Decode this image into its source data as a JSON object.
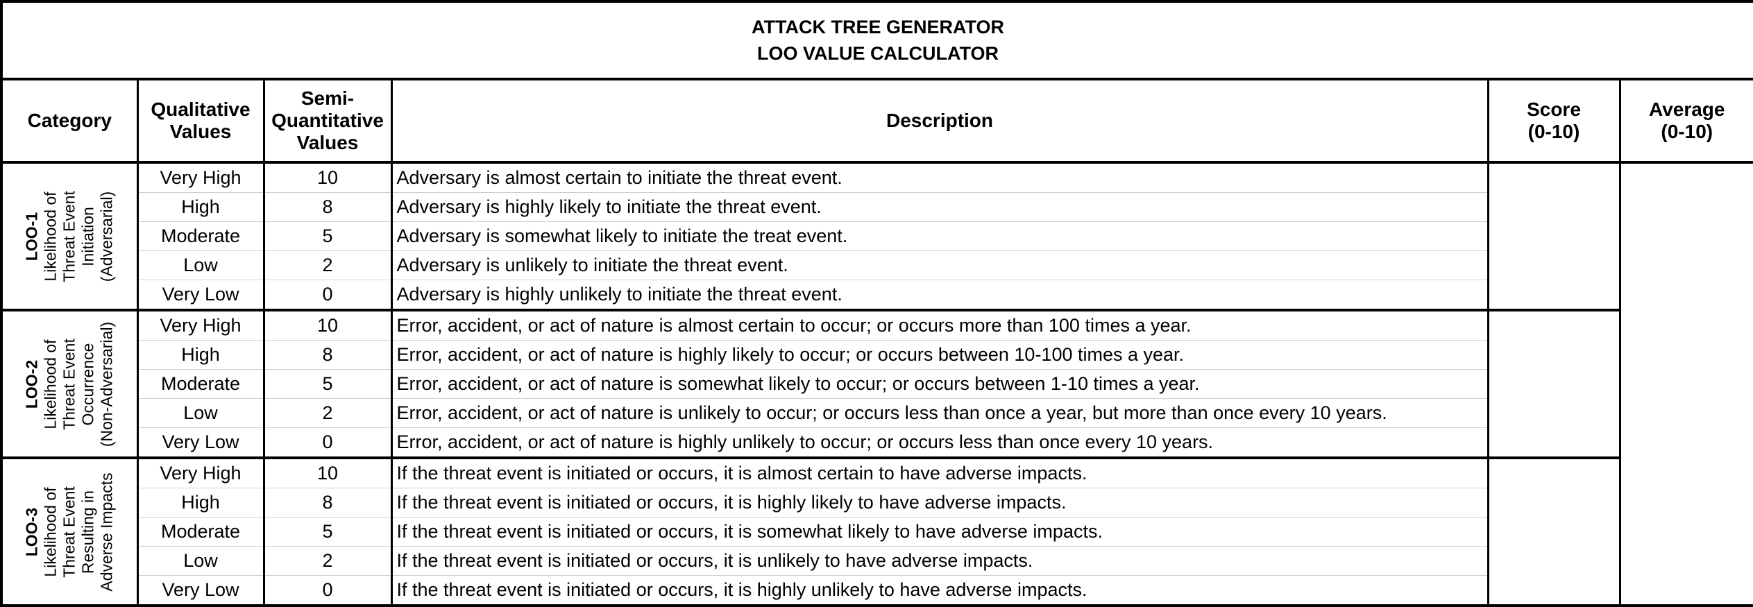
{
  "title": {
    "line1": "ATTACK TREE GENERATOR",
    "line2": "LOO VALUE CALCULATOR"
  },
  "headers": {
    "category": "Category",
    "qualitative_line1": "Qualitative",
    "qualitative_line2": "Values",
    "semi_line1": "Semi-",
    "semi_line2": "Quantitative",
    "semi_line3": "Values",
    "description": "Description",
    "score_line1": "Score",
    "score_line2": "(0-10)",
    "average_line1": "Average",
    "average_line2": "(0-10)"
  },
  "groups": [
    {
      "code": "LOO-1",
      "label_lines": [
        "Likelihood of",
        "Threat Event",
        "Initiation",
        "(Adversarial)"
      ],
      "score": "",
      "rows": [
        {
          "qual": "Very High",
          "semi": "10",
          "desc": "Adversary is almost certain to initiate the threat event."
        },
        {
          "qual": "High",
          "semi": "8",
          "desc": "Adversary is highly likely to initiate the threat event."
        },
        {
          "qual": "Moderate",
          "semi": "5",
          "desc": "Adversary is somewhat likely to initiate the treat event."
        },
        {
          "qual": "Low",
          "semi": "2",
          "desc": "Adversary is unlikely to initiate the threat event."
        },
        {
          "qual": "Very Low",
          "semi": "0",
          "desc": "Adversary is highly unlikely to initiate the threat event."
        }
      ]
    },
    {
      "code": "LOO-2",
      "label_lines": [
        "Likelihood of",
        "Threat Event",
        "Occurrence",
        "(Non-Adversarial)"
      ],
      "score": "",
      "rows": [
        {
          "qual": "Very High",
          "semi": "10",
          "desc": "Error, accident, or act of nature is almost certain to occur; or occurs more than 100 times a year."
        },
        {
          "qual": "High",
          "semi": "8",
          "desc": "Error, accident, or act of nature is highly likely to occur; or occurs between 10-100 times a year."
        },
        {
          "qual": "Moderate",
          "semi": "5",
          "desc": "Error, accident, or act of nature is somewhat likely to occur; or occurs between 1-10 times a year."
        },
        {
          "qual": "Low",
          "semi": "2",
          "desc": "Error, accident, or act of nature is unlikely to occur; or occurs less than once a year, but more than once every 10 years."
        },
        {
          "qual": "Very Low",
          "semi": "0",
          "desc": "Error, accident, or act of nature is highly unlikely to occur; or occurs less than once every 10 years."
        }
      ]
    },
    {
      "code": "LOO-3",
      "label_lines": [
        "Likelihood of",
        "Threat Event",
        "Resulting in",
        "Adverse Impacts"
      ],
      "score": "",
      "rows": [
        {
          "qual": "Very High",
          "semi": "10",
          "desc": "If the threat event is initiated or occurs, it is almost certain to have adverse impacts."
        },
        {
          "qual": "High",
          "semi": "8",
          "desc": "If the threat event is initiated or occurs, it is highly likely to have adverse impacts."
        },
        {
          "qual": "Moderate",
          "semi": "5",
          "desc": "If the threat event is initiated or occurs, it is somewhat likely to have adverse impacts."
        },
        {
          "qual": "Low",
          "semi": "2",
          "desc": "If the threat event is initiated or occurs, it is unlikely to have adverse impacts."
        },
        {
          "qual": "Very Low",
          "semi": "0",
          "desc": "If the threat event is initiated or occurs, it is highly unlikely to have adverse impacts."
        }
      ]
    }
  ],
  "average": ""
}
